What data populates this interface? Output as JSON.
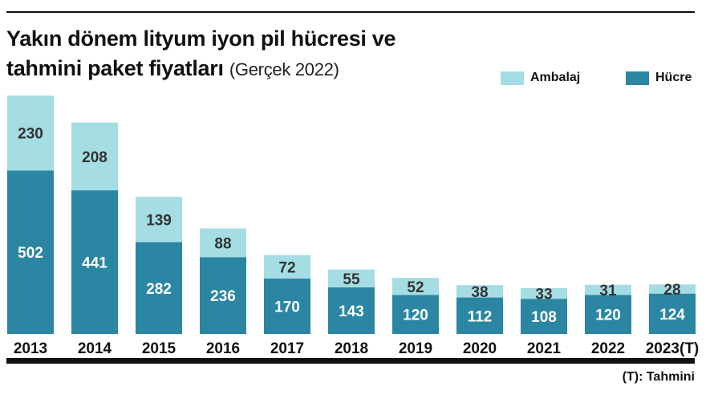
{
  "title": {
    "main_line1": "Yakın dönem lityum iyon pil hücresi ve",
    "main_line2": "tahmini paket fiyatları",
    "subtitle": "(Gerçek 2022)"
  },
  "legend": [
    {
      "name": "Ambalaj",
      "color": "#a4dde3"
    },
    {
      "name": "Hücre",
      "color": "#2b86a3"
    }
  ],
  "note": "(T): Tahmini",
  "chart_data": {
    "type": "bar",
    "stacked": true,
    "categories": [
      "2013",
      "2014",
      "2015",
      "2016",
      "2017",
      "2018",
      "2019",
      "2020",
      "2021",
      "2022",
      "2023(T)"
    ],
    "series": [
      {
        "name": "Hücre",
        "color": "#2b86a3",
        "label_color": "#ffffff",
        "values": [
          502,
          441,
          282,
          236,
          170,
          143,
          120,
          112,
          108,
          120,
          124
        ]
      },
      {
        "name": "Ambalaj",
        "color": "#a4dde3",
        "label_color": "#333333",
        "values": [
          230,
          208,
          139,
          88,
          72,
          55,
          52,
          38,
          33,
          31,
          28
        ]
      }
    ],
    "title": "Yakın dönem lityum iyon pil hücresi ve tahmini paket fiyatları",
    "subtitle": "(Gerçek 2022)",
    "xlabel": "",
    "ylabel": "",
    "ylim": [
      0,
      732
    ],
    "grid": false,
    "legend_position": "top-right"
  }
}
